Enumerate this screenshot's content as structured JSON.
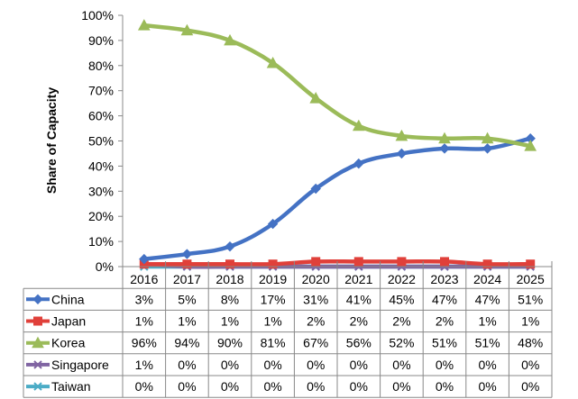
{
  "chart_data": {
    "type": "line",
    "title": "",
    "xlabel": "",
    "ylabel": "Share of Capacity",
    "ylim": [
      0,
      100
    ],
    "y_ticks": [
      "0%",
      "10%",
      "20%",
      "30%",
      "40%",
      "50%",
      "60%",
      "70%",
      "80%",
      "90%",
      "100%"
    ],
    "grid": false,
    "legend": "data-table-rows",
    "categories": [
      "2016",
      "2017",
      "2018",
      "2019",
      "2020",
      "2021",
      "2022",
      "2023",
      "2024",
      "2025"
    ],
    "series": [
      {
        "name": "China",
        "color": "#4472C4",
        "marker": "diamond",
        "values": [
          3,
          5,
          8,
          17,
          31,
          41,
          45,
          47,
          47,
          51
        ],
        "labels": [
          "3%",
          "5%",
          "8%",
          "17%",
          "31%",
          "41%",
          "45%",
          "47%",
          "47%",
          "51%"
        ]
      },
      {
        "name": "Japan",
        "color": "#E0403A",
        "marker": "square",
        "values": [
          1,
          1,
          1,
          1,
          2,
          2,
          2,
          2,
          1,
          1
        ],
        "labels": [
          "1%",
          "1%",
          "1%",
          "1%",
          "2%",
          "2%",
          "2%",
          "2%",
          "1%",
          "1%"
        ]
      },
      {
        "name": "Korea",
        "color": "#9BBB59",
        "marker": "triangle",
        "values": [
          96,
          94,
          90,
          81,
          67,
          56,
          52,
          51,
          51,
          48
        ],
        "labels": [
          "96%",
          "94%",
          "90%",
          "81%",
          "67%",
          "56%",
          "52%",
          "51%",
          "51%",
          "48%"
        ]
      },
      {
        "name": "Singapore",
        "color": "#8064A2",
        "marker": "x",
        "values": [
          1,
          0,
          0,
          0,
          0,
          0,
          0,
          0,
          0,
          0
        ],
        "labels": [
          "1%",
          "0%",
          "0%",
          "0%",
          "0%",
          "0%",
          "0%",
          "0%",
          "0%",
          "0%"
        ]
      },
      {
        "name": "Taiwan",
        "color": "#4BACC6",
        "marker": "x",
        "values": [
          0,
          0,
          0,
          0,
          0,
          0,
          0,
          0,
          0,
          0
        ],
        "labels": [
          "0%",
          "0%",
          "0%",
          "0%",
          "0%",
          "0%",
          "0%",
          "0%",
          "0%",
          "0%"
        ]
      }
    ]
  }
}
